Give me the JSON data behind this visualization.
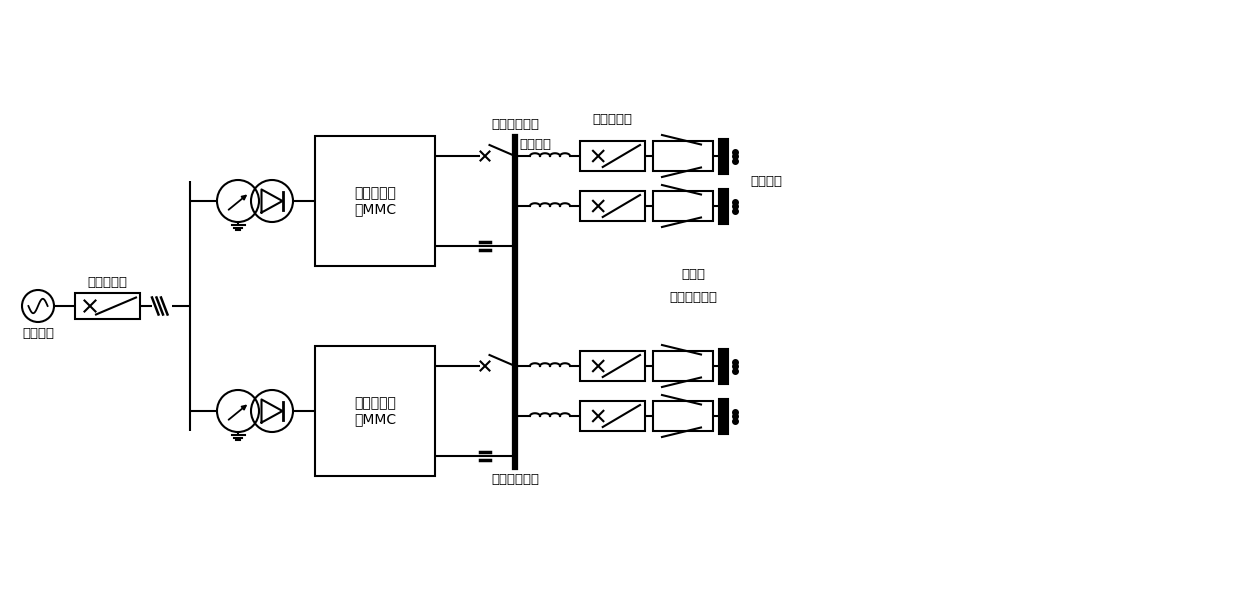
{
  "background": "#ffffff",
  "line_color": "#000000",
  "lw": 1.5,
  "labels": {
    "ac_breaker": "交流断路器",
    "ac_system": "交流系统",
    "half_bridge_mmc": "半桥子模块\n型MMC",
    "mechanical_switch": "机械开关",
    "dc_breaker": "直流断路器",
    "dc_line": "直流线路",
    "resistive_sfcl_1": "电阻型",
    "resistive_sfcl_2": "超导限流装置",
    "pos_dc_bus": "正极直流母线",
    "neg_dc_bus": "负极直流母线"
  },
  "xlim": [
    0,
    124
  ],
  "ylim": [
    0,
    61.2
  ],
  "figsize": [
    12.4,
    6.12
  ],
  "dpi": 100
}
